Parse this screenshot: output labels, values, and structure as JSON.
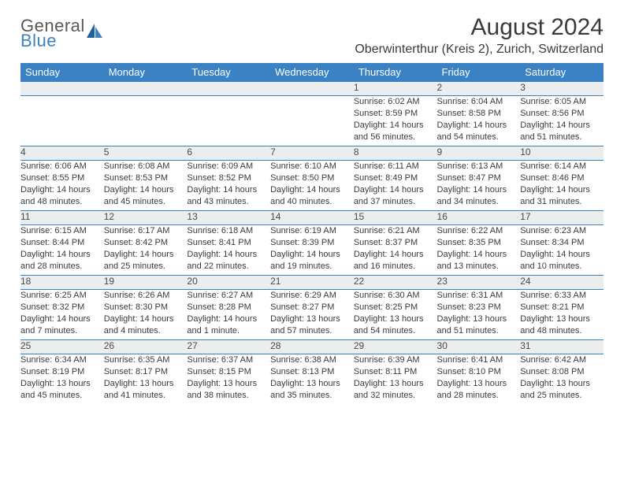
{
  "brand": {
    "general": "General",
    "blue": "Blue"
  },
  "title": "August 2024",
  "location": "Oberwinterthur (Kreis 2), Zurich, Switzerland",
  "colors": {
    "header_bg": "#3b82c4",
    "header_fg": "#ffffff",
    "daynum_bg": "#eceded",
    "text": "#3a3a3a",
    "rule": "#3b82c4"
  },
  "day_names": [
    "Sunday",
    "Monday",
    "Tuesday",
    "Wednesday",
    "Thursday",
    "Friday",
    "Saturday"
  ],
  "weeks": [
    [
      null,
      null,
      null,
      null,
      {
        "n": "1",
        "sr": "6:02 AM",
        "ss": "8:59 PM",
        "dl": "14 hours and 56 minutes."
      },
      {
        "n": "2",
        "sr": "6:04 AM",
        "ss": "8:58 PM",
        "dl": "14 hours and 54 minutes."
      },
      {
        "n": "3",
        "sr": "6:05 AM",
        "ss": "8:56 PM",
        "dl": "14 hours and 51 minutes."
      }
    ],
    [
      {
        "n": "4",
        "sr": "6:06 AM",
        "ss": "8:55 PM",
        "dl": "14 hours and 48 minutes."
      },
      {
        "n": "5",
        "sr": "6:08 AM",
        "ss": "8:53 PM",
        "dl": "14 hours and 45 minutes."
      },
      {
        "n": "6",
        "sr": "6:09 AM",
        "ss": "8:52 PM",
        "dl": "14 hours and 43 minutes."
      },
      {
        "n": "7",
        "sr": "6:10 AM",
        "ss": "8:50 PM",
        "dl": "14 hours and 40 minutes."
      },
      {
        "n": "8",
        "sr": "6:11 AM",
        "ss": "8:49 PM",
        "dl": "14 hours and 37 minutes."
      },
      {
        "n": "9",
        "sr": "6:13 AM",
        "ss": "8:47 PM",
        "dl": "14 hours and 34 minutes."
      },
      {
        "n": "10",
        "sr": "6:14 AM",
        "ss": "8:46 PM",
        "dl": "14 hours and 31 minutes."
      }
    ],
    [
      {
        "n": "11",
        "sr": "6:15 AM",
        "ss": "8:44 PM",
        "dl": "14 hours and 28 minutes."
      },
      {
        "n": "12",
        "sr": "6:17 AM",
        "ss": "8:42 PM",
        "dl": "14 hours and 25 minutes."
      },
      {
        "n": "13",
        "sr": "6:18 AM",
        "ss": "8:41 PM",
        "dl": "14 hours and 22 minutes."
      },
      {
        "n": "14",
        "sr": "6:19 AM",
        "ss": "8:39 PM",
        "dl": "14 hours and 19 minutes."
      },
      {
        "n": "15",
        "sr": "6:21 AM",
        "ss": "8:37 PM",
        "dl": "14 hours and 16 minutes."
      },
      {
        "n": "16",
        "sr": "6:22 AM",
        "ss": "8:35 PM",
        "dl": "14 hours and 13 minutes."
      },
      {
        "n": "17",
        "sr": "6:23 AM",
        "ss": "8:34 PM",
        "dl": "14 hours and 10 minutes."
      }
    ],
    [
      {
        "n": "18",
        "sr": "6:25 AM",
        "ss": "8:32 PM",
        "dl": "14 hours and 7 minutes."
      },
      {
        "n": "19",
        "sr": "6:26 AM",
        "ss": "8:30 PM",
        "dl": "14 hours and 4 minutes."
      },
      {
        "n": "20",
        "sr": "6:27 AM",
        "ss": "8:28 PM",
        "dl": "14 hours and 1 minute."
      },
      {
        "n": "21",
        "sr": "6:29 AM",
        "ss": "8:27 PM",
        "dl": "13 hours and 57 minutes."
      },
      {
        "n": "22",
        "sr": "6:30 AM",
        "ss": "8:25 PM",
        "dl": "13 hours and 54 minutes."
      },
      {
        "n": "23",
        "sr": "6:31 AM",
        "ss": "8:23 PM",
        "dl": "13 hours and 51 minutes."
      },
      {
        "n": "24",
        "sr": "6:33 AM",
        "ss": "8:21 PM",
        "dl": "13 hours and 48 minutes."
      }
    ],
    [
      {
        "n": "25",
        "sr": "6:34 AM",
        "ss": "8:19 PM",
        "dl": "13 hours and 45 minutes."
      },
      {
        "n": "26",
        "sr": "6:35 AM",
        "ss": "8:17 PM",
        "dl": "13 hours and 41 minutes."
      },
      {
        "n": "27",
        "sr": "6:37 AM",
        "ss": "8:15 PM",
        "dl": "13 hours and 38 minutes."
      },
      {
        "n": "28",
        "sr": "6:38 AM",
        "ss": "8:13 PM",
        "dl": "13 hours and 35 minutes."
      },
      {
        "n": "29",
        "sr": "6:39 AM",
        "ss": "8:11 PM",
        "dl": "13 hours and 32 minutes."
      },
      {
        "n": "30",
        "sr": "6:41 AM",
        "ss": "8:10 PM",
        "dl": "13 hours and 28 minutes."
      },
      {
        "n": "31",
        "sr": "6:42 AM",
        "ss": "8:08 PM",
        "dl": "13 hours and 25 minutes."
      }
    ]
  ],
  "labels": {
    "sunrise": "Sunrise:",
    "sunset": "Sunset:",
    "daylight": "Daylight:"
  }
}
